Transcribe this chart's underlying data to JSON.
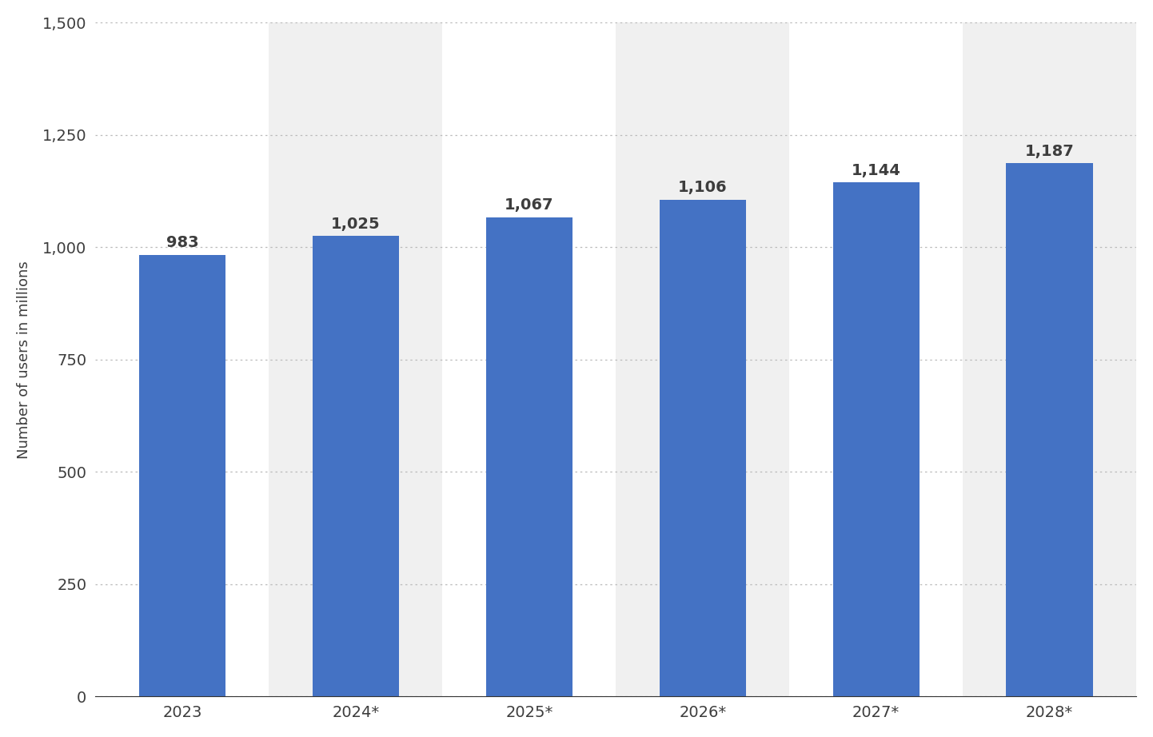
{
  "categories": [
    "2023",
    "2024*",
    "2025*",
    "2026*",
    "2027*",
    "2028*"
  ],
  "values": [
    983,
    1025,
    1067,
    1106,
    1144,
    1187
  ],
  "bar_color": "#4472C4",
  "label_color": "#3d3d3d",
  "ylabel": "Number of users in millions",
  "ylim": [
    0,
    1500
  ],
  "yticks": [
    0,
    250,
    500,
    750,
    1000,
    1250,
    1500
  ],
  "ytick_labels": [
    "0",
    "250",
    "500",
    "750",
    "1,000",
    "1,250",
    "1,500"
  ],
  "background_color": "#ffffff",
  "plot_bg_color": "#ffffff",
  "stripe_color": "#f0f0f0",
  "grid_color": "#bbbbbb",
  "bar_width": 0.5,
  "label_fontsize": 14,
  "tick_fontsize": 14,
  "ylabel_fontsize": 13,
  "value_label_fontweight": "bold"
}
